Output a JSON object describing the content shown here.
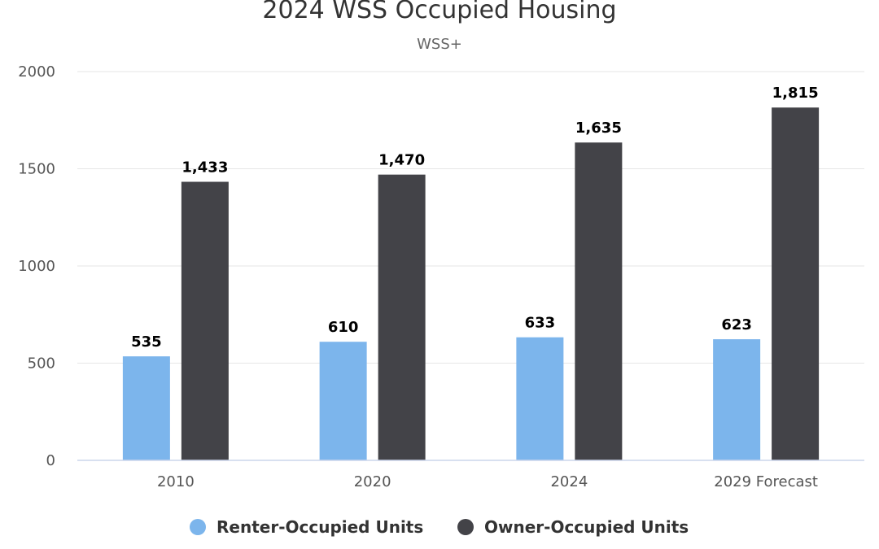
{
  "chart_data": {
    "type": "bar",
    "title": "2024 WSS Occupied Housing",
    "subtitle": "WSS+",
    "categories": [
      "2010",
      "2020",
      "2024",
      "2029 Forecast"
    ],
    "series": [
      {
        "name": "Renter-Occupied Units",
        "color": "#7cb5ec",
        "values": [
          535,
          610,
          633,
          623
        ],
        "labels": [
          "535",
          "610",
          "633",
          "623"
        ]
      },
      {
        "name": "Owner-Occupied Units",
        "color": "#434348",
        "values": [
          1433,
          1470,
          1635,
          1815
        ],
        "labels": [
          "1,433",
          "1,470",
          "1,635",
          "1,815"
        ]
      }
    ],
    "ylim": [
      0,
      2000
    ],
    "yticks": [
      0,
      500,
      1000,
      1500,
      2000
    ],
    "ytick_labels": [
      "0",
      "500",
      "1000",
      "1500",
      "2000"
    ],
    "grid": true,
    "legend_position": "bottom-center"
  }
}
